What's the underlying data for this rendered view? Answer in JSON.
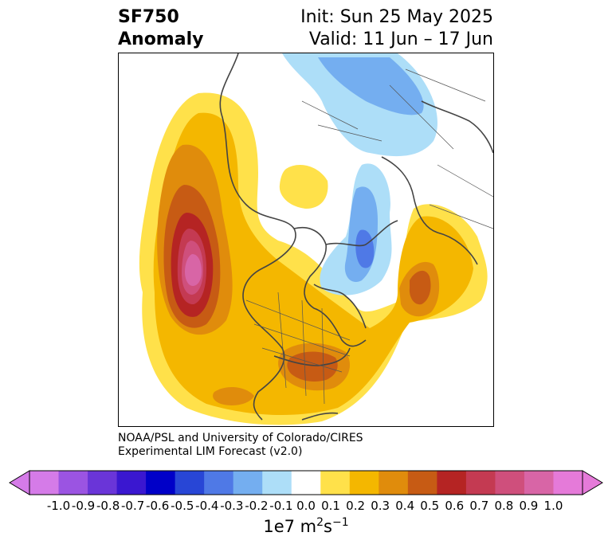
{
  "title": {
    "line1": "SF750",
    "line2": "Anomaly",
    "init": "Init: Sun 25 May 2025",
    "valid": "Valid: 11 Jun – 17 Jun"
  },
  "credit": {
    "line1": "NOAA/PSL and University of Colorado/CIRES",
    "line2": "Experimental LIM Forecast (v2.0)"
  },
  "colorbar": {
    "ticks": [
      "-1.0",
      "-0.9",
      "-0.8",
      "-0.7",
      "-0.6",
      "-0.5",
      "-0.4",
      "-0.3",
      "-0.2",
      "-0.1",
      "0.0",
      "0.1",
      "0.2",
      "0.3",
      "0.4",
      "0.5",
      "0.6",
      "0.7",
      "0.8",
      "0.9",
      "1.0"
    ],
    "colors": [
      "#d57be8",
      "#9b54e2",
      "#6a35d8",
      "#3a17d0",
      "#0000c8",
      "#2846d6",
      "#4f79e6",
      "#74aef0",
      "#addef8",
      "#ffffff",
      "#ffe14a",
      "#f4b700",
      "#e08c0c",
      "#c75b14",
      "#b52423",
      "#c43a52",
      "#cf4f7c",
      "#d865a6",
      "#e57ad9"
    ],
    "unit_base": "1e7 m",
    "unit_exp1": "2",
    "unit_mid": "s",
    "unit_exp2": "−1"
  }
}
